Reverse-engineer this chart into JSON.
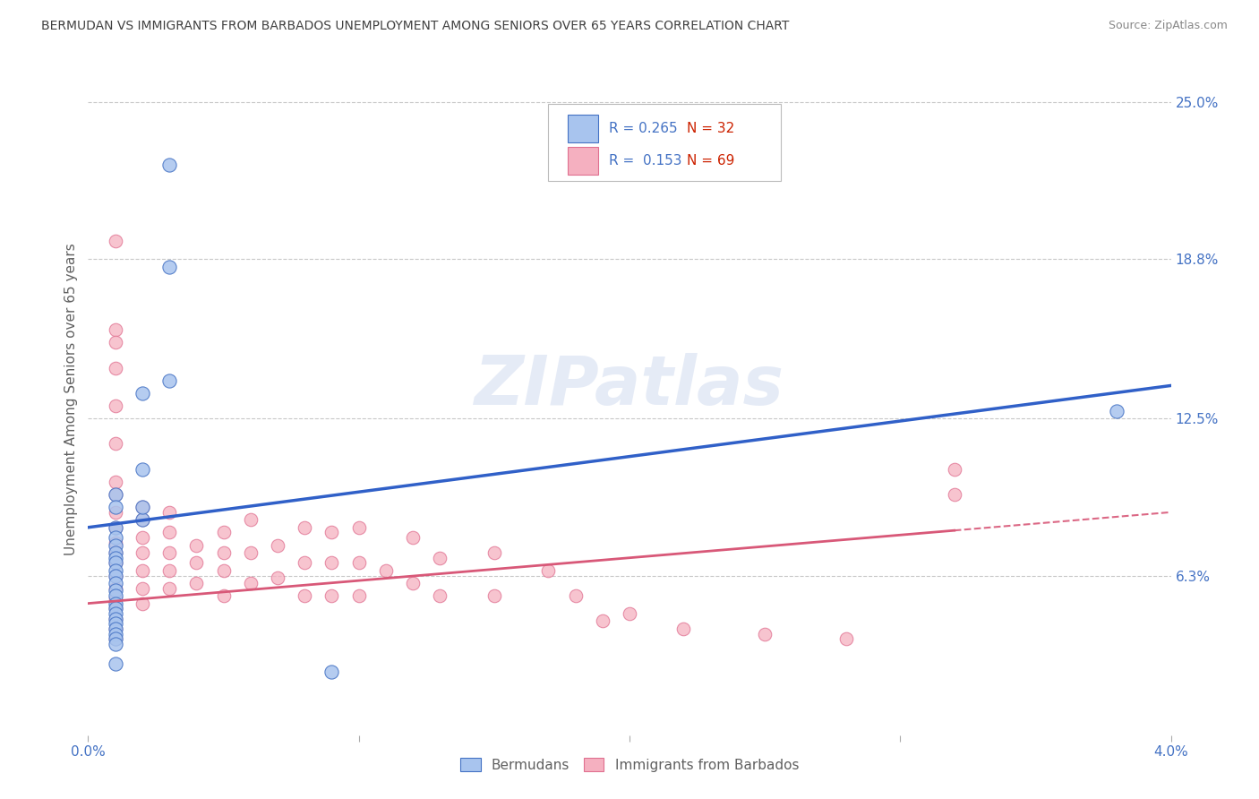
{
  "title": "BERMUDAN VS IMMIGRANTS FROM BARBADOS UNEMPLOYMENT AMONG SENIORS OVER 65 YEARS CORRELATION CHART",
  "source": "Source: ZipAtlas.com",
  "ylabel": "Unemployment Among Seniors over 65 years",
  "xlim": [
    0.0,
    0.04
  ],
  "ylim": [
    0.0,
    0.265
  ],
  "ytick_right_vals": [
    0.063,
    0.125,
    0.188,
    0.25
  ],
  "ytick_right_labels": [
    "6.3%",
    "12.5%",
    "18.8%",
    "25.0%"
  ],
  "series1_label": "Bermudans",
  "series2_label": "Immigrants from Barbados",
  "series1_color": "#a8c4ee",
  "series2_color": "#f5b0c0",
  "series1_edge": "#4472c4",
  "series2_edge": "#e07090",
  "trend1_color": "#3060c8",
  "trend2_color": "#d85878",
  "watermark": "ZIPatlas",
  "background_color": "#ffffff",
  "grid_color": "#c8c8c8",
  "title_color": "#404040",
  "axis_label_color": "#606060",
  "tick_color": "#4472c4",
  "right_tick_color": "#4472c4",
  "trend1_y0": 0.082,
  "trend1_y1": 0.138,
  "trend2_y0": 0.052,
  "trend2_y1": 0.088,
  "trend2_solid_end": 0.032,
  "bermudans_x": [
    0.003,
    0.003,
    0.003,
    0.002,
    0.002,
    0.002,
    0.002,
    0.001,
    0.001,
    0.001,
    0.001,
    0.001,
    0.001,
    0.001,
    0.001,
    0.001,
    0.001,
    0.001,
    0.001,
    0.001,
    0.001,
    0.001,
    0.001,
    0.001,
    0.001,
    0.001,
    0.001,
    0.001,
    0.001,
    0.001,
    0.009,
    0.038
  ],
  "bermudans_y": [
    0.225,
    0.185,
    0.14,
    0.135,
    0.105,
    0.085,
    0.09,
    0.095,
    0.09,
    0.082,
    0.078,
    0.075,
    0.072,
    0.07,
    0.068,
    0.065,
    0.063,
    0.06,
    0.057,
    0.055,
    0.052,
    0.05,
    0.048,
    0.046,
    0.044,
    0.042,
    0.04,
    0.038,
    0.036,
    0.028,
    0.025,
    0.128
  ],
  "barbados_x": [
    0.001,
    0.001,
    0.001,
    0.001,
    0.001,
    0.001,
    0.001,
    0.001,
    0.001,
    0.001,
    0.001,
    0.001,
    0.001,
    0.001,
    0.001,
    0.001,
    0.001,
    0.001,
    0.001,
    0.001,
    0.002,
    0.002,
    0.002,
    0.002,
    0.002,
    0.002,
    0.002,
    0.003,
    0.003,
    0.003,
    0.003,
    0.003,
    0.004,
    0.004,
    0.004,
    0.005,
    0.005,
    0.005,
    0.005,
    0.006,
    0.006,
    0.006,
    0.007,
    0.007,
    0.008,
    0.008,
    0.008,
    0.009,
    0.009,
    0.009,
    0.01,
    0.01,
    0.01,
    0.011,
    0.012,
    0.012,
    0.013,
    0.013,
    0.015,
    0.015,
    0.017,
    0.018,
    0.019,
    0.02,
    0.022,
    0.025,
    0.028,
    0.032,
    0.032
  ],
  "barbados_y": [
    0.195,
    0.16,
    0.155,
    0.145,
    0.13,
    0.115,
    0.1,
    0.095,
    0.088,
    0.082,
    0.076,
    0.072,
    0.068,
    0.063,
    0.058,
    0.054,
    0.05,
    0.046,
    0.042,
    0.038,
    0.09,
    0.085,
    0.078,
    0.072,
    0.065,
    0.058,
    0.052,
    0.088,
    0.08,
    0.072,
    0.065,
    0.058,
    0.075,
    0.068,
    0.06,
    0.08,
    0.072,
    0.065,
    0.055,
    0.085,
    0.072,
    0.06,
    0.075,
    0.062,
    0.082,
    0.068,
    0.055,
    0.08,
    0.068,
    0.055,
    0.082,
    0.068,
    0.055,
    0.065,
    0.078,
    0.06,
    0.07,
    0.055,
    0.072,
    0.055,
    0.065,
    0.055,
    0.045,
    0.048,
    0.042,
    0.04,
    0.038,
    0.105,
    0.095
  ]
}
